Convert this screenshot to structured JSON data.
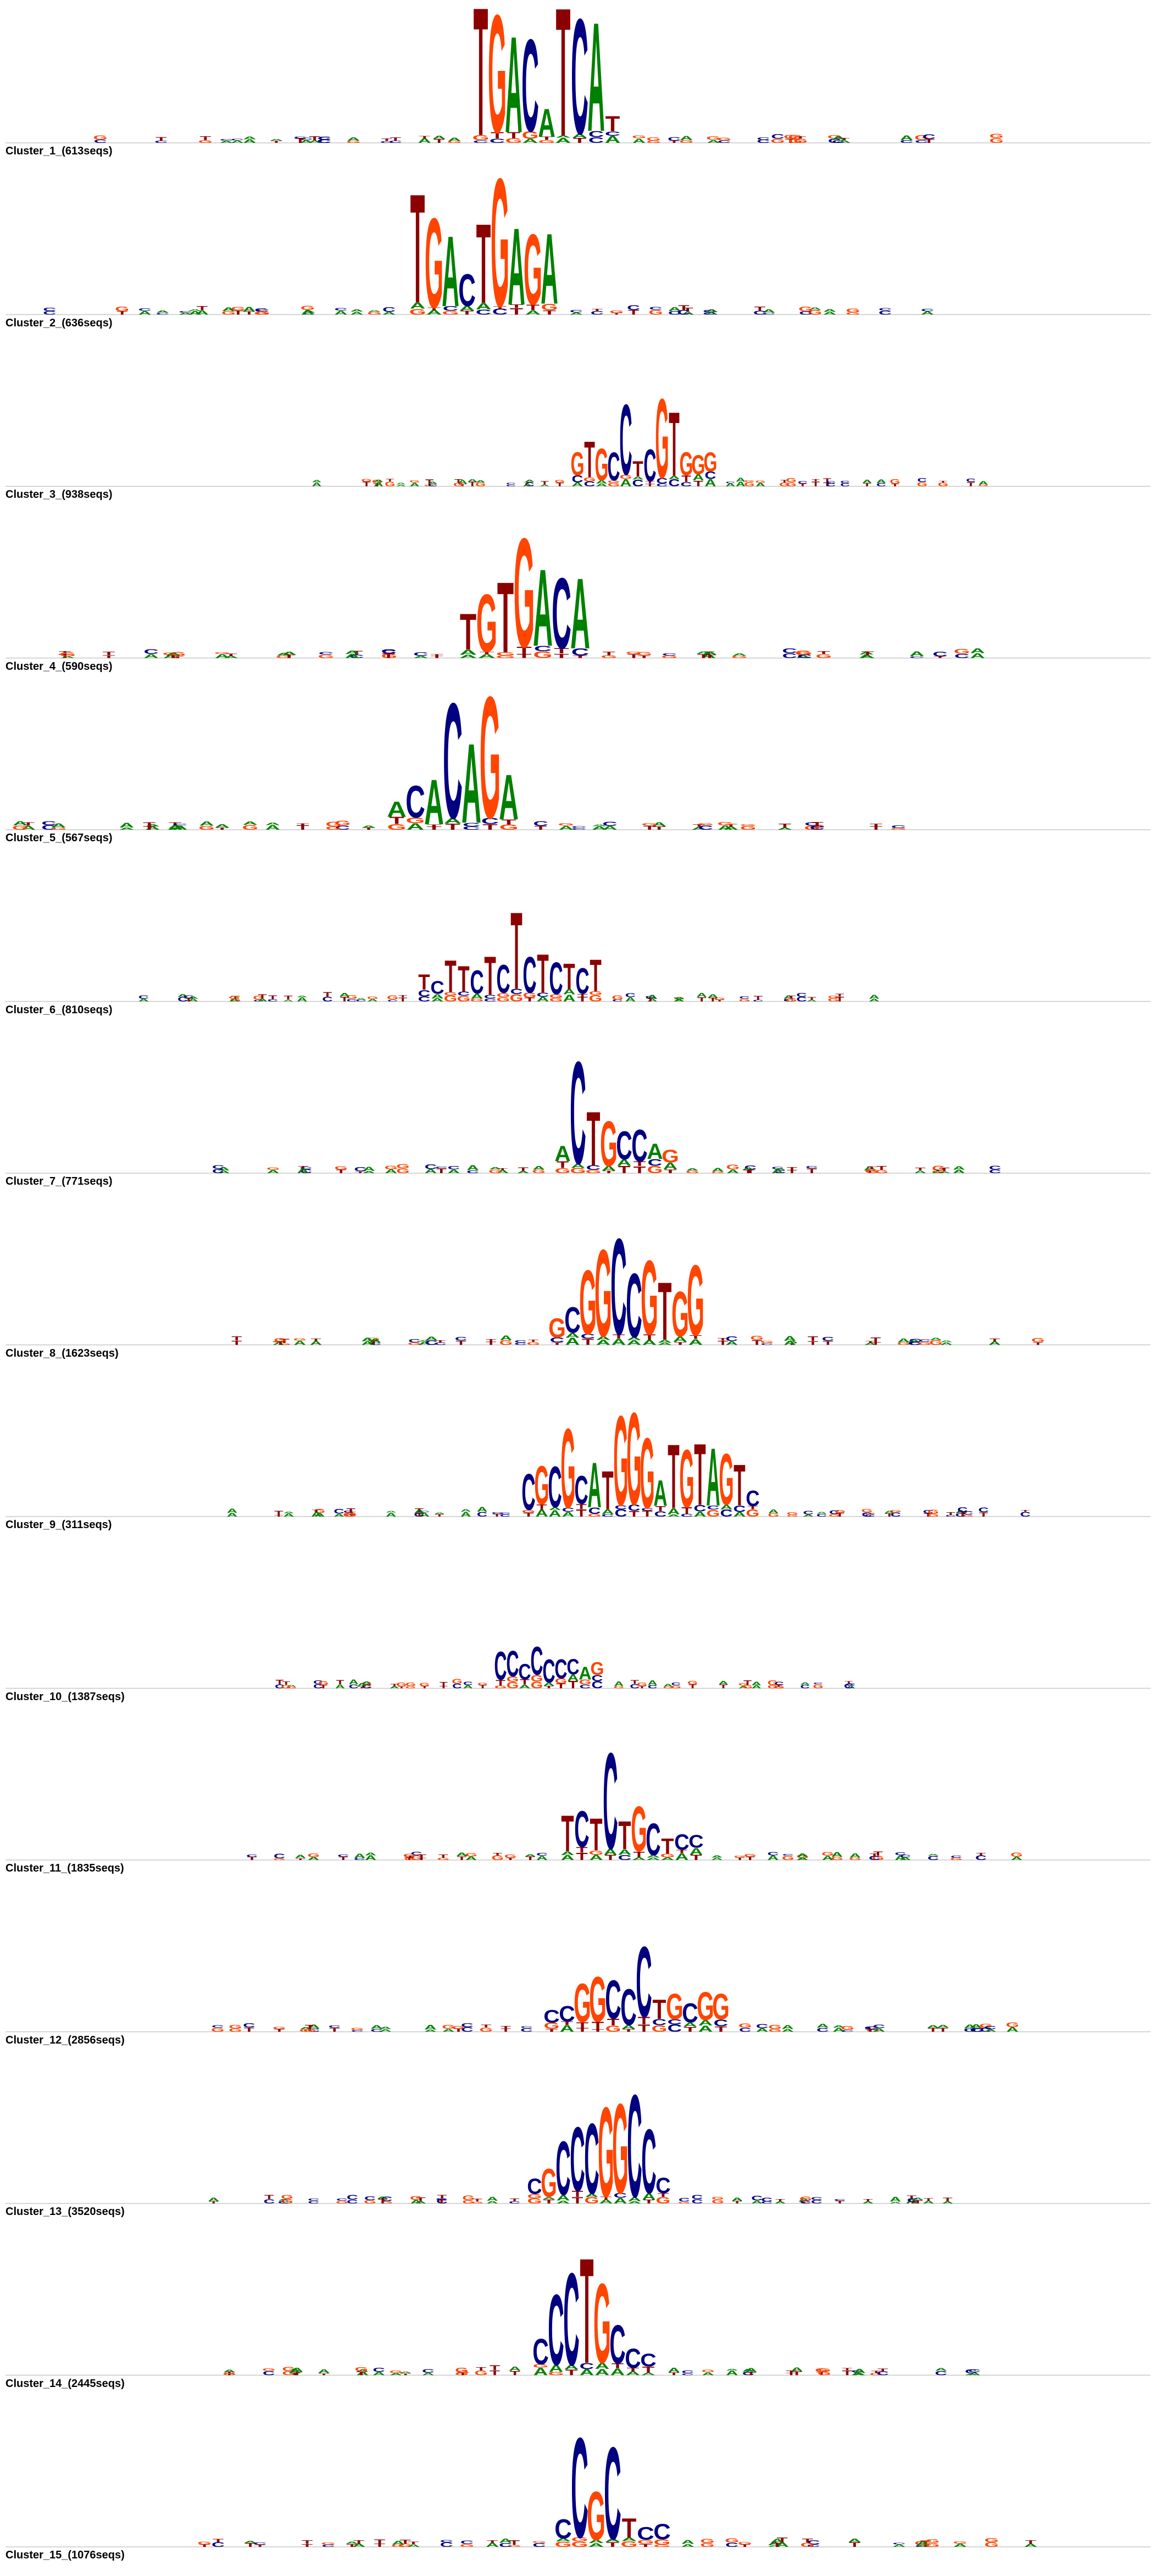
{
  "colors": {
    "A": "#008000",
    "C": "#000080",
    "G": "#FF4500",
    "T": "#8B0000",
    "gap": "#800080",
    "baseline": "#c8c8c8"
  },
  "clusters": [
    {
      "label": "Cluster_1_(613seqs)",
      "motif": [
        [
          "T",
          1.0
        ],
        [
          "G",
          0.92
        ],
        [
          "A",
          0.75
        ],
        [
          "C",
          0.72
        ],
        [
          "A",
          0.22
        ],
        [
          "T",
          1.0
        ],
        [
          "C",
          0.9
        ],
        [
          "A",
          0.85
        ],
        [
          "T",
          0.12
        ]
      ]
    },
    {
      "label": "Cluster_2_(636seqs)",
      "motif": [
        [
          "T",
          0.85
        ],
        [
          "G",
          0.7
        ],
        [
          "A",
          0.55
        ],
        [
          "C",
          0.25
        ],
        [
          "T",
          0.62
        ],
        [
          "G",
          1.0
        ],
        [
          "A",
          0.6
        ],
        [
          "G",
          0.55
        ],
        [
          "A",
          0.55
        ]
      ]
    },
    {
      "label": "Cluster_3_(938seqs)",
      "motif": [
        [
          "G",
          0.18
        ],
        [
          "T",
          0.28
        ],
        [
          "G",
          0.25
        ],
        [
          "C",
          0.22
        ],
        [
          "C",
          0.55
        ],
        [
          "T",
          0.12
        ],
        [
          "C",
          0.25
        ],
        [
          "G",
          0.62
        ],
        [
          "T",
          0.5
        ],
        [
          "G",
          0.18
        ],
        [
          "G",
          0.15
        ],
        [
          "G",
          0.15
        ]
      ]
    },
    {
      "label": "Cluster_4_(590seqs)",
      "motif": [
        [
          "T",
          0.28
        ],
        [
          "G",
          0.45
        ],
        [
          "T",
          0.55
        ],
        [
          "G",
          0.85
        ],
        [
          "A",
          0.6
        ],
        [
          "C",
          0.55
        ],
        [
          "A",
          0.55
        ]
      ]
    },
    {
      "label": "Cluster_5_(567seqs)",
      "motif": [
        [
          "A",
          0.12
        ],
        [
          "C",
          0.25
        ],
        [
          "A",
          0.35
        ],
        [
          "C",
          0.9
        ],
        [
          "A",
          0.62
        ],
        [
          "G",
          0.95
        ],
        [
          "A",
          0.35
        ]
      ]
    },
    {
      "label": "Cluster_6_(810seqs)",
      "motif": [
        [
          "T",
          0.12
        ],
        [
          "C",
          0.1
        ],
        [
          "T",
          0.25
        ],
        [
          "T",
          0.2
        ],
        [
          "C",
          0.18
        ],
        [
          "T",
          0.3
        ],
        [
          "C",
          0.22
        ],
        [
          "T",
          0.6
        ],
        [
          "C",
          0.28
        ],
        [
          "T",
          0.3
        ],
        [
          "C",
          0.25
        ],
        [
          "T",
          0.2
        ],
        [
          "C",
          0.2
        ],
        [
          "T",
          0.25
        ]
      ]
    },
    {
      "label": "Cluster_7_(771seqs)",
      "motif": [
        [
          "A",
          0.12
        ],
        [
          "C",
          0.8
        ],
        [
          "T",
          0.42
        ],
        [
          "G",
          0.35
        ],
        [
          "C",
          0.22
        ],
        [
          "C",
          0.25
        ],
        [
          "A",
          0.12
        ],
        [
          "G",
          0.1
        ]
      ]
    },
    {
      "label": "Cluster_8_(1623seqs)",
      "motif": [
        [
          "G",
          0.15
        ],
        [
          "C",
          0.2
        ],
        [
          "G",
          0.5
        ],
        [
          "G",
          0.68
        ],
        [
          "C",
          0.75
        ],
        [
          "C",
          0.5
        ],
        [
          "G",
          0.58
        ],
        [
          "T",
          0.45
        ],
        [
          "G",
          0.35
        ],
        [
          "G",
          0.55
        ]
      ]
    },
    {
      "label": "Cluster_9_(311seqs)",
      "motif": [
        [
          "C",
          0.28
        ],
        [
          "G",
          0.3
        ],
        [
          "C",
          0.32
        ],
        [
          "G",
          0.62
        ],
        [
          "C",
          0.22
        ],
        [
          "A",
          0.35
        ],
        [
          "T",
          0.3
        ],
        [
          "G",
          0.7
        ],
        [
          "G",
          0.72
        ],
        [
          "G",
          0.55
        ],
        [
          "A",
          0.2
        ],
        [
          "T",
          0.5
        ],
        [
          "G",
          0.45
        ],
        [
          "T",
          0.48
        ],
        [
          "A",
          0.45
        ],
        [
          "G",
          0.4
        ],
        [
          "T",
          0.32
        ],
        [
          "C",
          0.12
        ]
      ]
    },
    {
      "label": "Cluster_10_(1387seqs)",
      "motif": [
        [
          "C",
          0.22
        ],
        [
          "C",
          0.2
        ],
        [
          "C",
          0.12
        ],
        [
          "C",
          0.22
        ],
        [
          "C",
          0.18
        ],
        [
          "C",
          0.15
        ],
        [
          "C",
          0.12
        ],
        [
          "A",
          0.1
        ],
        [
          "G",
          0.1
        ]
      ]
    },
    {
      "label": "Cluster_11_(1835seqs)",
      "motif": [
        [
          "T",
          0.28
        ],
        [
          "C",
          0.28
        ],
        [
          "T",
          0.25
        ],
        [
          "C",
          0.75
        ],
        [
          "T",
          0.22
        ],
        [
          "G",
          0.35
        ],
        [
          "C",
          0.25
        ],
        [
          "T",
          0.12
        ],
        [
          "C",
          0.12
        ],
        [
          "C",
          0.1
        ]
      ]
    },
    {
      "label": "Cluster_12_(2856seqs)",
      "motif": [
        [
          "C",
          0.1
        ],
        [
          "C",
          0.12
        ],
        [
          "G",
          0.3
        ],
        [
          "G",
          0.35
        ],
        [
          "C",
          0.3
        ],
        [
          "C",
          0.28
        ],
        [
          "C",
          0.55
        ],
        [
          "T",
          0.15
        ],
        [
          "G",
          0.2
        ],
        [
          "C",
          0.15
        ],
        [
          "G",
          0.22
        ],
        [
          "G",
          0.2
        ]
      ]
    },
    {
      "label": "Cluster_13_(3520seqs)",
      "motif": [
        [
          "C",
          0.12
        ],
        [
          "G",
          0.22
        ],
        [
          "C",
          0.42
        ],
        [
          "C",
          0.5
        ],
        [
          "C",
          0.55
        ],
        [
          "G",
          0.7
        ],
        [
          "G",
          0.7
        ],
        [
          "C",
          0.8
        ],
        [
          "C",
          0.5
        ],
        [
          "C",
          0.12
        ]
      ]
    },
    {
      "label": "Cluster_14_(2445seqs)",
      "motif": [
        [
          "C",
          0.2
        ],
        [
          "C",
          0.55
        ],
        [
          "C",
          0.72
        ],
        [
          "T",
          0.82
        ],
        [
          "G",
          0.62
        ],
        [
          "C",
          0.3
        ],
        [
          "C",
          0.15
        ],
        [
          "C",
          0.1
        ]
      ]
    },
    {
      "label": "Cluster_15_(1076seqs)",
      "motif": [
        [
          "C",
          0.15
        ],
        [
          "C",
          0.78
        ],
        [
          "G",
          0.38
        ],
        [
          "C",
          0.72
        ],
        [
          "T",
          0.15
        ],
        [
          "C",
          0.1
        ],
        [
          "C",
          0.12
        ]
      ]
    }
  ]
}
